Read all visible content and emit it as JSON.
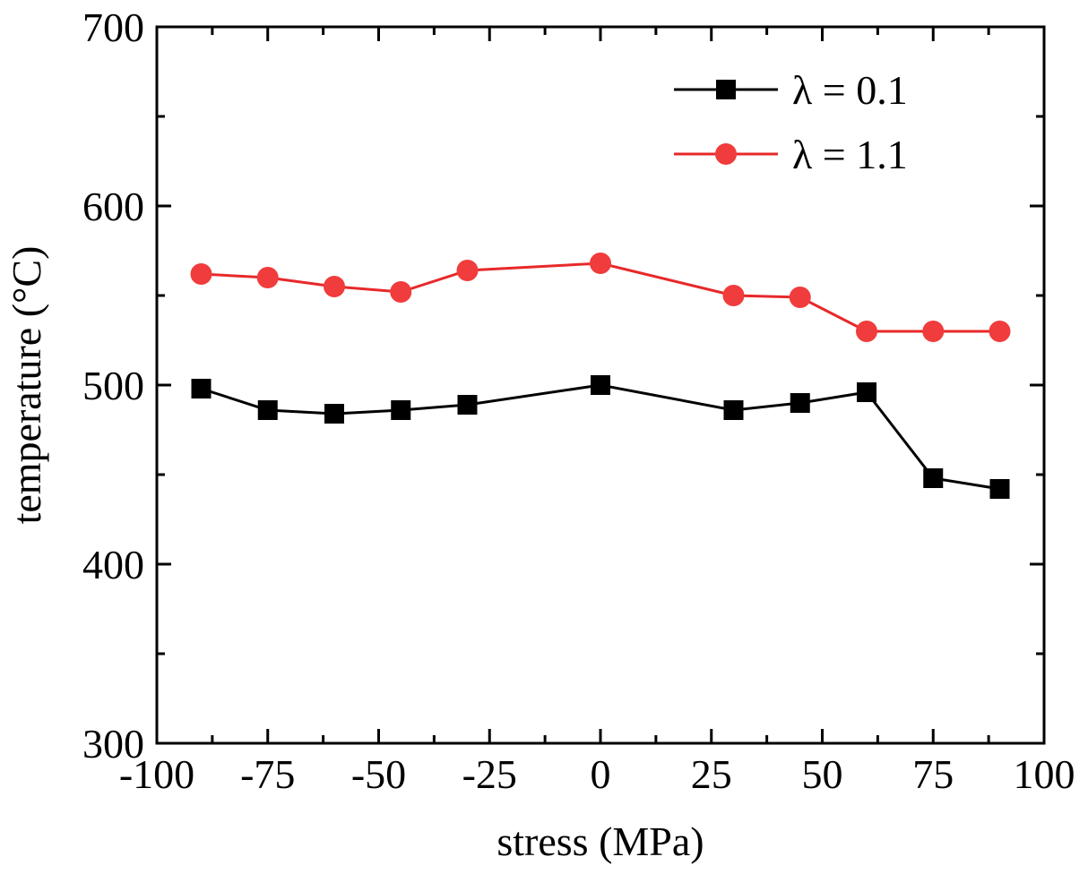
{
  "chart_data": {
    "type": "line",
    "title": "",
    "xlabel": "stress (MPa)",
    "ylabel": "temperature (°C)",
    "xlim": [
      -100,
      100
    ],
    "ylim": [
      300,
      700
    ],
    "xticks": [
      -100,
      -75,
      -50,
      -25,
      0,
      25,
      50,
      75,
      100
    ],
    "xtick_labels": [
      "-100",
      "-75",
      "-50",
      "-25",
      "0",
      "25",
      "50",
      "75",
      "100"
    ],
    "yticks": [
      300,
      400,
      500,
      600,
      700
    ],
    "ytick_labels": [
      "300",
      "400",
      "500",
      "600",
      "700"
    ],
    "grid": false,
    "legend_position": "top-right",
    "series": [
      {
        "name": "λ = 0.1",
        "color": "#000000",
        "marker": "square",
        "x": [
          -90,
          -75,
          -60,
          -45,
          -30,
          0,
          30,
          45,
          60,
          75,
          90
        ],
        "y": [
          498,
          486,
          484,
          486,
          489,
          500,
          486,
          490,
          496,
          448,
          442
        ]
      },
      {
        "name": "λ = 1.1",
        "color": "#f03c3c",
        "line_color": "#e8282a",
        "marker": "circle",
        "x": [
          -90,
          -75,
          -60,
          -45,
          -30,
          0,
          30,
          45,
          60,
          75,
          90
        ],
        "y": [
          562,
          560,
          555,
          552,
          564,
          568,
          550,
          549,
          530,
          530,
          530
        ]
      }
    ]
  }
}
